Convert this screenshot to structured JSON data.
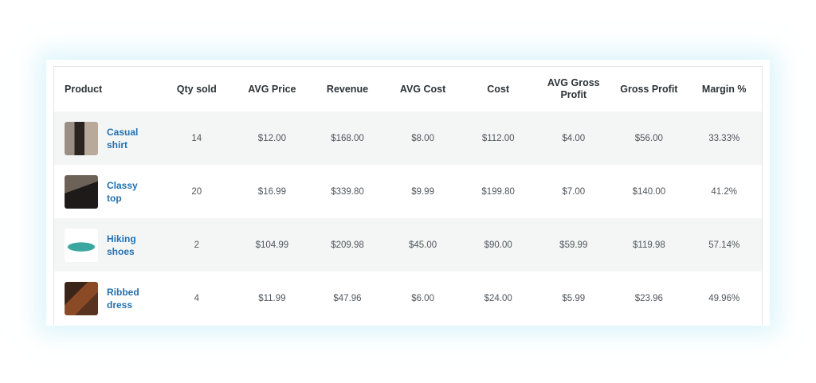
{
  "table": {
    "columns": [
      "Product",
      "Qty sold",
      "AVG Price",
      "Revenue",
      "AVG Cost",
      "Cost",
      "AVG Gross Profit",
      "Gross Profit",
      "Margin %"
    ],
    "rows": [
      [
        "Casual shirt",
        "14",
        "$12.00",
        "$168.00",
        "$8.00",
        "$112.00",
        "$4.00",
        "$56.00",
        "33.33%"
      ],
      [
        "Classy top",
        "20",
        "$16.99",
        "$339.80",
        "$9.99",
        "$199.80",
        "$7.00",
        "$140.00",
        "41.2%"
      ],
      [
        "Hiking shoes",
        "2",
        "$104.99",
        "$209.98",
        "$45.00",
        "$90.00",
        "$59.99",
        "$119.98",
        "57.14%"
      ],
      [
        "Ribbed dress",
        "4",
        "$11.99",
        "$47.96",
        "$6.00",
        "$24.00",
        "$5.99",
        "$23.96",
        "49.96%"
      ]
    ]
  }
}
